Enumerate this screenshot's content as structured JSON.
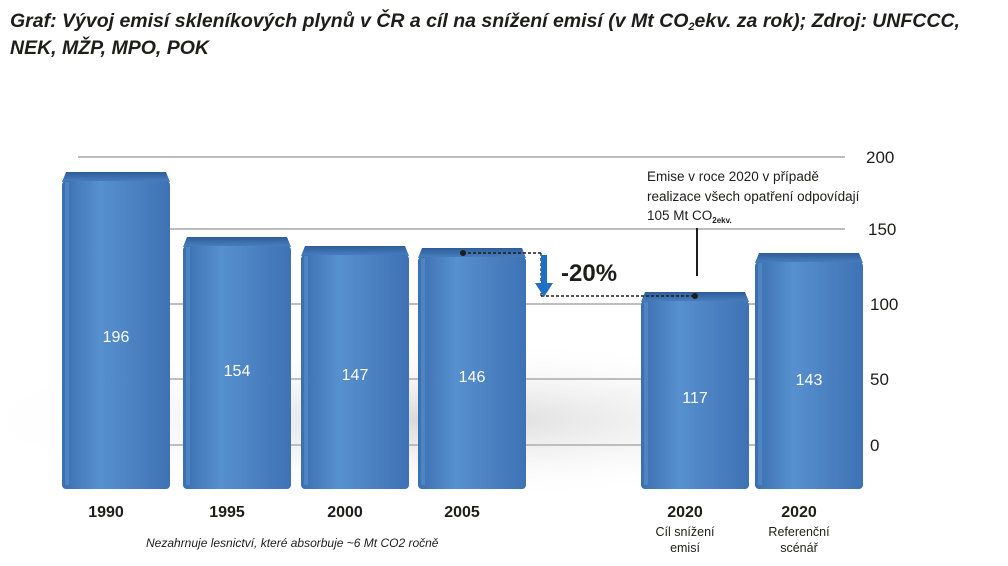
{
  "title": {
    "prefix": "Graf: Vývoj emisí skleníkových plynů v ČR a cíl na snížení emisí (v Mt CO",
    "sub": "2",
    "suffix": "ekv. za rok); Zdroj: UNFCCC, NEK, MŽP, MPO, POK"
  },
  "chart_data": {
    "type": "bar",
    "categories": [
      "1990",
      "1995",
      "2000",
      "2005",
      "2020",
      "2020"
    ],
    "category_sublabels": [
      "",
      "",
      "",
      "",
      "Cíl snížení emisí",
      "Referenční scénář"
    ],
    "values": [
      196,
      154,
      147,
      146,
      117,
      143
    ],
    "value_labels": [
      "196",
      "154",
      "147",
      "146",
      "117",
      "143"
    ],
    "ylim": [
      0,
      200
    ],
    "yticks": [
      "0",
      "50",
      "100",
      "150",
      "200"
    ],
    "axis_side": "right",
    "grid": true,
    "bar_color": "#4b82c3",
    "arrow_color": "#1f6fc4",
    "reduction_label": "-20%",
    "annotation": {
      "line1": "Emise v roce 2020 v případě",
      "line2": "realizace všech opatření odpovídají",
      "line3_prefix": "105 Mt CO",
      "line3_sub": "2ekv."
    },
    "footnote": "Nezahrnuje lesnictví, které absorbuje ~6 Mt CO2 ročně"
  }
}
